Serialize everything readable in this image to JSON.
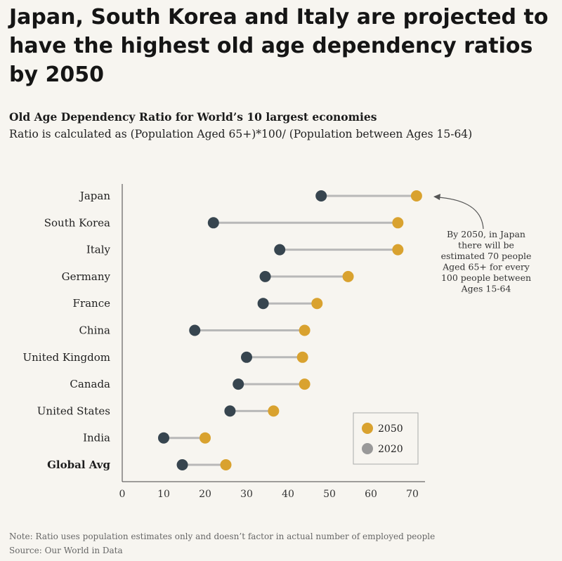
{
  "headline": "Japan, South Korea and Italy are projected to have the highest old age dependency ratios by 2050",
  "subtitle": "Old Age Dependency Ratio for World’s 10 largest economies",
  "description": "Ratio is calculated as (Population Aged 65+)*100/ (Population between Ages 15-64)",
  "annotation": [
    "By 2050, in Japan",
    "there will be",
    "estimated 70 people",
    "Aged 65+ for every",
    "100 people between",
    "Ages 15-64"
  ],
  "note": "Note: Ratio uses population estimates only and doesn’t factor in actual number of employed people",
  "source": "Source: Our World in Data",
  "colors": {
    "y2020": "#37454f",
    "y2050": "#d9a22f",
    "connector": "#b8b8b8",
    "legend_2020": "#999999"
  },
  "chart_data": {
    "type": "dumbbell",
    "categories": [
      "Japan",
      "South Korea",
      "Italy",
      "Germany",
      "France",
      "China",
      "United Kingdom",
      "Canada",
      "United States",
      "India",
      "Global Avg"
    ],
    "series": [
      {
        "name": "2020",
        "values": [
          48,
          22,
          38,
          34.5,
          34,
          17.5,
          30,
          28,
          26,
          10,
          14.5
        ]
      },
      {
        "name": "2050",
        "values": [
          71,
          66.5,
          66.5,
          54.5,
          47,
          44,
          43.5,
          44,
          36.5,
          20,
          25
        ]
      }
    ],
    "x_ticks": [
      0,
      10,
      20,
      30,
      40,
      50,
      60,
      70
    ],
    "xlim": [
      0,
      70
    ],
    "legend": [
      "2050",
      "2020"
    ],
    "legend_position": "bottom-right"
  }
}
